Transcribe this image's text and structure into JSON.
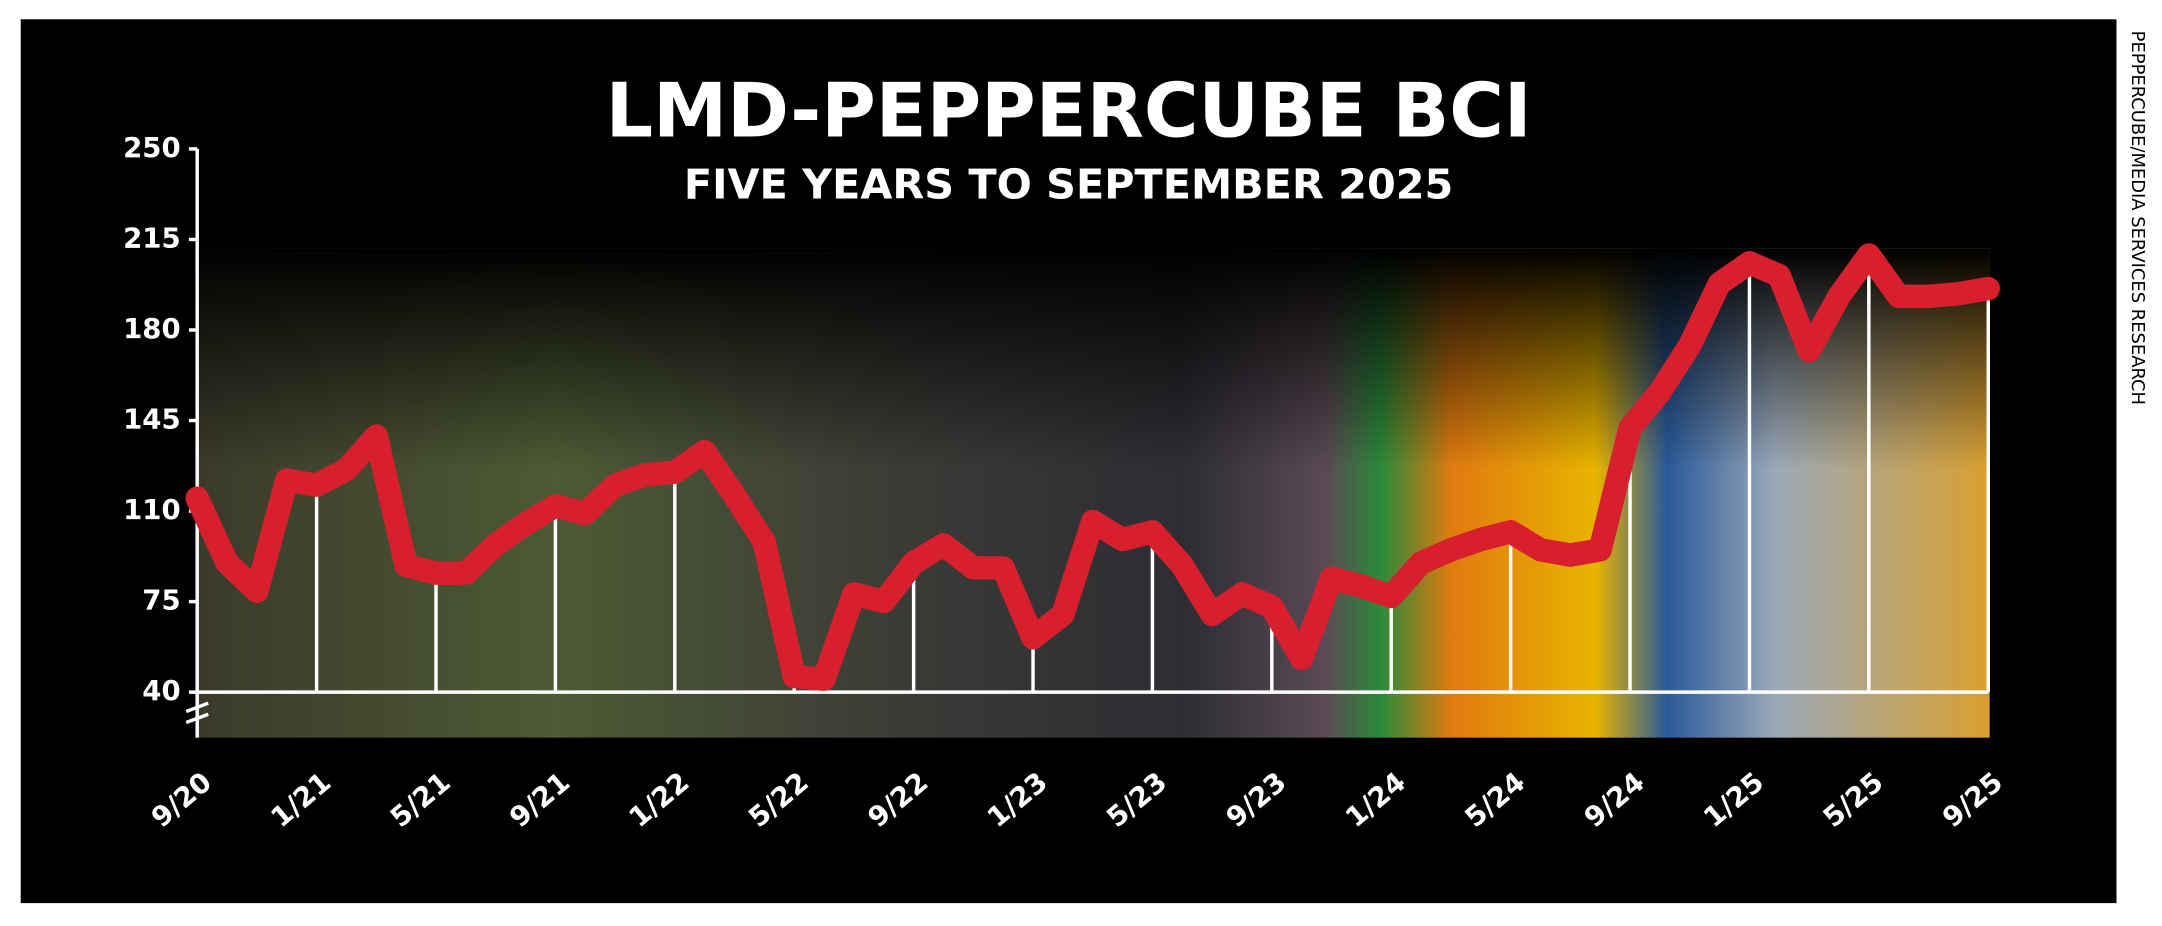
{
  "chart_data": {
    "type": "line",
    "title": "LMD-PEPPERCUBE BCI",
    "subtitle": "FIVE YEARS TO SEPTEMBER 2025",
    "source": "PEPPERCUBE/MEDIA SERVICES RESEARCH",
    "categories": [
      "9/20",
      null,
      null,
      null,
      "1/21",
      null,
      null,
      null,
      "5/21",
      null,
      null,
      null,
      "9/21",
      null,
      null,
      null,
      "1/22",
      null,
      null,
      null,
      "5/22",
      null,
      null,
      null,
      "9/22",
      null,
      null,
      null,
      "1/23",
      null,
      null,
      null,
      "5/23",
      null,
      null,
      null,
      "9/23",
      null,
      null,
      null,
      "1/24",
      null,
      null,
      null,
      "5/24",
      null,
      null,
      null,
      "9/24",
      null,
      null,
      null,
      "1/25",
      null,
      null,
      null,
      "5/25",
      null,
      null,
      null,
      "9/25"
    ],
    "values": [
      115,
      90,
      79,
      122,
      120,
      126,
      139,
      89,
      86,
      86,
      97,
      105,
      112,
      109,
      120,
      124,
      125,
      133,
      116,
      98,
      46,
      45,
      78,
      75,
      90,
      97,
      88,
      88,
      61,
      70,
      106,
      99,
      102,
      89,
      70,
      78,
      73,
      53,
      84,
      81,
      77,
      90,
      95,
      99,
      102,
      95,
      93,
      95,
      142,
      156,
      174,
      198,
      206,
      201,
      172,
      193,
      209,
      193,
      193,
      194,
      196
    ],
    "color": "#d71f2e",
    "ylim": [
      40,
      250
    ],
    "yticks": [
      40,
      75,
      110,
      145,
      180,
      215,
      250
    ],
    "grid": true
  }
}
